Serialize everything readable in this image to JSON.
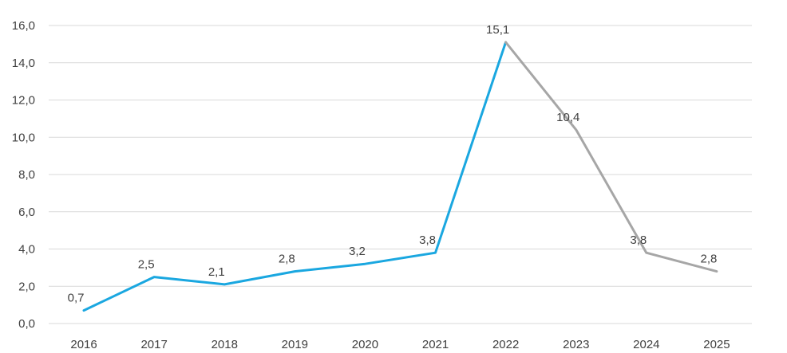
{
  "chart_data": {
    "type": "line",
    "title": "",
    "xlabel": "",
    "ylabel": "",
    "x": [
      "2016",
      "2017",
      "2018",
      "2019",
      "2020",
      "2021",
      "2022",
      "2023",
      "2024",
      "2025"
    ],
    "series": [
      {
        "values": [
          0.7,
          2.5,
          2.1,
          2.8,
          3.2,
          3.8,
          15.1,
          null,
          null,
          null
        ],
        "color": "#1AA7E0",
        "style": "solid"
      },
      {
        "values": [
          null,
          null,
          null,
          null,
          null,
          null,
          15.1,
          10.4,
          3.8,
          2.8
        ],
        "color": "#A6A6A6",
        "style": "solid"
      }
    ],
    "data_labels": [
      "0,7",
      "2,5",
      "2,1",
      "2,8",
      "3,2",
      "3,8",
      "15,1",
      "10,4",
      "3,8",
      "2,8"
    ],
    "y_tick_labels": [
      "0,0",
      "2,0",
      "4,0",
      "6,0",
      "8,0",
      "10,0",
      "12,0",
      "14,0",
      "16,0"
    ],
    "y_ticks": [
      0,
      2,
      4,
      6,
      8,
      10,
      12,
      14,
      16
    ],
    "ylim": [
      0,
      16
    ],
    "grid": true,
    "legend": "none",
    "colors": {
      "gridline": "#D9D9D9",
      "text": "#404040"
    }
  }
}
